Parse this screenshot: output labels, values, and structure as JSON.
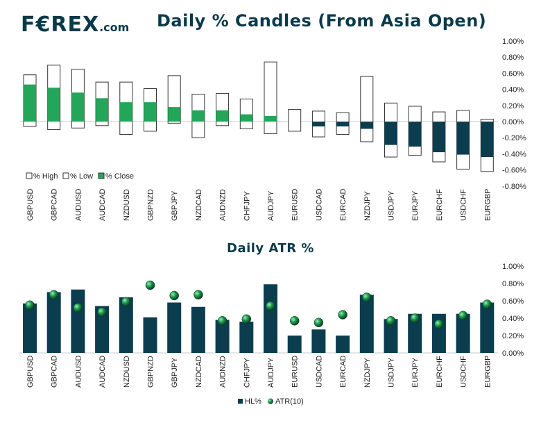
{
  "brand": {
    "logo_text": "F€REX",
    "logo_suffix": ".com"
  },
  "colors": {
    "navy": "#0b3d4f",
    "green": "#23a55a",
    "axis": "#222222"
  },
  "chart_data": [
    {
      "type": "floating-bar",
      "title": "Daily % Candles (From Asia Open)",
      "yunit": "%",
      "ylim": [
        -0.8,
        1.0
      ],
      "yticks": [
        -0.8,
        -0.6,
        -0.4,
        -0.2,
        0.0,
        0.2,
        0.4,
        0.6,
        0.8,
        1.0
      ],
      "ytick_labels": [
        "-0.80%",
        "-0.60%",
        "-0.40%",
        "-0.20%",
        "0.00%",
        "0.20%",
        "0.40%",
        "0.60%",
        "0.80%",
        "1.00%"
      ],
      "legend": [
        "% High",
        "% Low",
        "% Close"
      ],
      "legend_position": "bottom-left",
      "categories": [
        "GBPUSD",
        "GBPCAD",
        "AUDUSD",
        "AUDCAD",
        "NZDUSD",
        "GBPNZD",
        "GBPJPY",
        "NZDCAD",
        "AUDNZD",
        "CHFJPY",
        "AUDJPY",
        "EURUSD",
        "USDCAD",
        "EURCAD",
        "NZDJPY",
        "USDJPY",
        "EURJPY",
        "EURCHF",
        "USDCHF",
        "EURGBP"
      ],
      "high": [
        0.58,
        0.7,
        0.65,
        0.49,
        0.49,
        0.41,
        0.57,
        0.34,
        0.35,
        0.28,
        0.74,
        0.15,
        0.13,
        0.11,
        0.56,
        0.23,
        0.19,
        0.12,
        0.14,
        0.03
      ],
      "low": [
        -0.06,
        -0.1,
        -0.08,
        -0.05,
        -0.16,
        -0.12,
        -0.02,
        -0.2,
        -0.05,
        -0.09,
        -0.15,
        -0.12,
        -0.19,
        -0.16,
        -0.25,
        -0.44,
        -0.42,
        -0.5,
        -0.59,
        -0.62
      ],
      "close": [
        0.46,
        0.42,
        0.36,
        0.29,
        0.24,
        0.24,
        0.18,
        0.14,
        0.14,
        0.09,
        0.07,
        0.0,
        -0.06,
        -0.06,
        -0.09,
        -0.29,
        -0.31,
        -0.38,
        -0.41,
        -0.44
      ]
    },
    {
      "type": "bar+scatter",
      "title": "Daily ATR %",
      "yunit": "%",
      "ylim": [
        0.0,
        1.0
      ],
      "yticks": [
        0.0,
        0.2,
        0.4,
        0.6,
        0.8,
        1.0
      ],
      "ytick_labels": [
        "0.00%",
        "0.20%",
        "0.40%",
        "0.60%",
        "0.80%",
        "1.00%"
      ],
      "legend": [
        "HL%",
        "ATR(10)"
      ],
      "legend_position": "bottom-center",
      "categories": [
        "GBPUSD",
        "GBPCAD",
        "AUDUSD",
        "AUDCAD",
        "NZDUSD",
        "GBPNZD",
        "GBPJPY",
        "NZDCAD",
        "AUDNZD",
        "CHFJPY",
        "AUDJPY",
        "EURUSD",
        "USDCAD",
        "EURCAD",
        "NZDJPY",
        "USDJPY",
        "EURJPY",
        "EURCHF",
        "USDCHF",
        "EURGBP"
      ],
      "hl": [
        0.57,
        0.7,
        0.73,
        0.54,
        0.64,
        0.41,
        0.58,
        0.53,
        0.38,
        0.36,
        0.79,
        0.2,
        0.27,
        0.2,
        0.67,
        0.39,
        0.45,
        0.45,
        0.45,
        0.58
      ],
      "atr": [
        0.55,
        0.67,
        0.52,
        0.47,
        0.59,
        0.78,
        0.66,
        0.67,
        0.37,
        0.39,
        0.54,
        0.37,
        0.35,
        0.44,
        0.64,
        0.37,
        0.4,
        0.33,
        0.43,
        0.56
      ]
    }
  ]
}
